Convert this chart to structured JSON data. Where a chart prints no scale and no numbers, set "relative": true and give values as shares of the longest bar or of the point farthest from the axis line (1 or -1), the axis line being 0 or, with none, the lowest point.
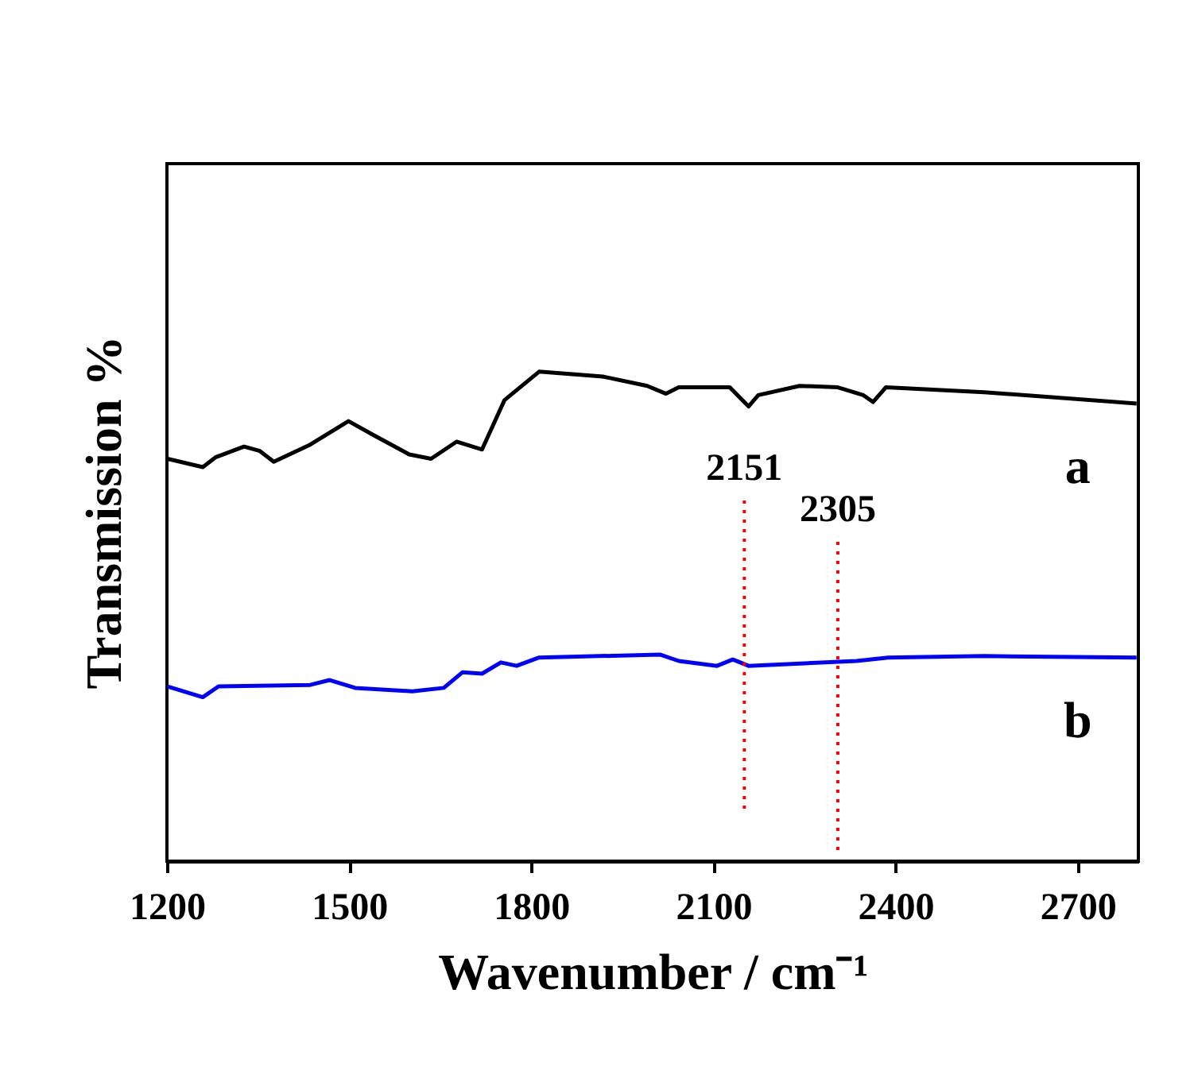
{
  "chart_data": {
    "type": "line",
    "relative": true,
    "xlabel": "Wavenumber / cm⁻¹",
    "ylabel": "Transmission %",
    "xlim": [
      1200,
      2800
    ],
    "xticks": [
      1200,
      1500,
      1800,
      2100,
      2400,
      2700
    ],
    "line_style": "solid",
    "marker": "none",
    "series": [
      {
        "name": "a",
        "color": "#000000",
        "x": [
          1201,
          1259,
          1280,
          1327,
          1353,
          1376,
          1436,
          1499,
          1541,
          1599,
          1635,
          1677,
          1719,
          1756,
          1813,
          1918,
          1991,
          2022,
          2043,
          2127,
          2158,
          2174,
          2242,
          2305,
          2347,
          2363,
          2384,
          2546,
          2797
        ],
        "values": [
          0.822,
          0.805,
          0.825,
          0.847,
          0.838,
          0.816,
          0.851,
          0.899,
          0.87,
          0.831,
          0.822,
          0.857,
          0.841,
          0.942,
          1,
          0.99,
          0.971,
          0.955,
          0.968,
          0.968,
          0.929,
          0.952,
          0.971,
          0.968,
          0.952,
          0.938,
          0.968,
          0.958,
          0.935
        ]
      },
      {
        "name": "b",
        "color": "#0000ff",
        "x": [
          1201,
          1259,
          1285,
          1436,
          1468,
          1510,
          1604,
          1656,
          1687,
          1719,
          1750,
          1776,
          1813,
          2012,
          2043,
          2106,
          2132,
          2158,
          2336,
          2388,
          2546,
          2797
        ],
        "values": [
          0.357,
          0.335,
          0.357,
          0.36,
          0.37,
          0.354,
          0.347,
          0.354,
          0.386,
          0.383,
          0.406,
          0.399,
          0.416,
          0.422,
          0.409,
          0.399,
          0.412,
          0.399,
          0.409,
          0.416,
          0.419,
          0.416
        ]
      }
    ],
    "ref_lines": [
      {
        "axis": "x",
        "value": 2151,
        "label": "2151",
        "color": "#ff0000",
        "line_style": "dotted"
      },
      {
        "axis": "x",
        "value": 2305,
        "label": "2305",
        "color": "#ff0000",
        "line_style": "dotted"
      }
    ]
  }
}
